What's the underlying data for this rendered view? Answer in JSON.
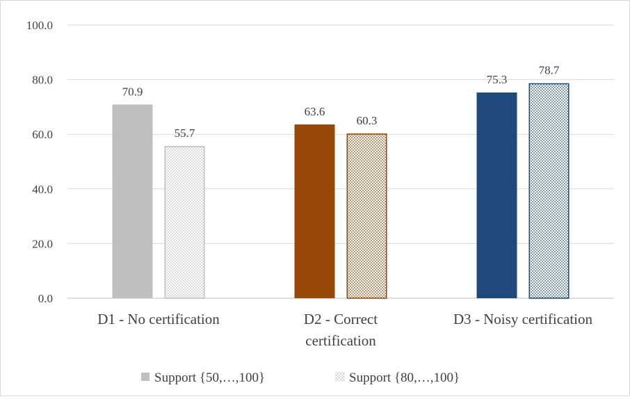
{
  "chart_data": {
    "type": "bar",
    "categories": [
      [
        "D1 - No certification"
      ],
      [
        "D2 - Correct",
        "certification"
      ],
      [
        "D3 - Noisy certification"
      ]
    ],
    "series": [
      {
        "name": "Support {50,…,100}",
        "values": [
          70.9,
          63.6,
          75.3
        ],
        "style": "solid"
      },
      {
        "name": "Support {80,…,100}",
        "values": [
          55.7,
          60.3,
          78.7
        ],
        "style": "dotted"
      }
    ],
    "category_colors": [
      "#bfbfbf",
      "#974706",
      "#1f497d"
    ],
    "yticks": [
      "0.0",
      "20.0",
      "40.0",
      "60.0",
      "80.0",
      "100.0"
    ],
    "ylim": [
      0,
      100
    ],
    "grid": true,
    "legend_position": "bottom",
    "title": "",
    "xlabel": "",
    "ylabel": ""
  }
}
